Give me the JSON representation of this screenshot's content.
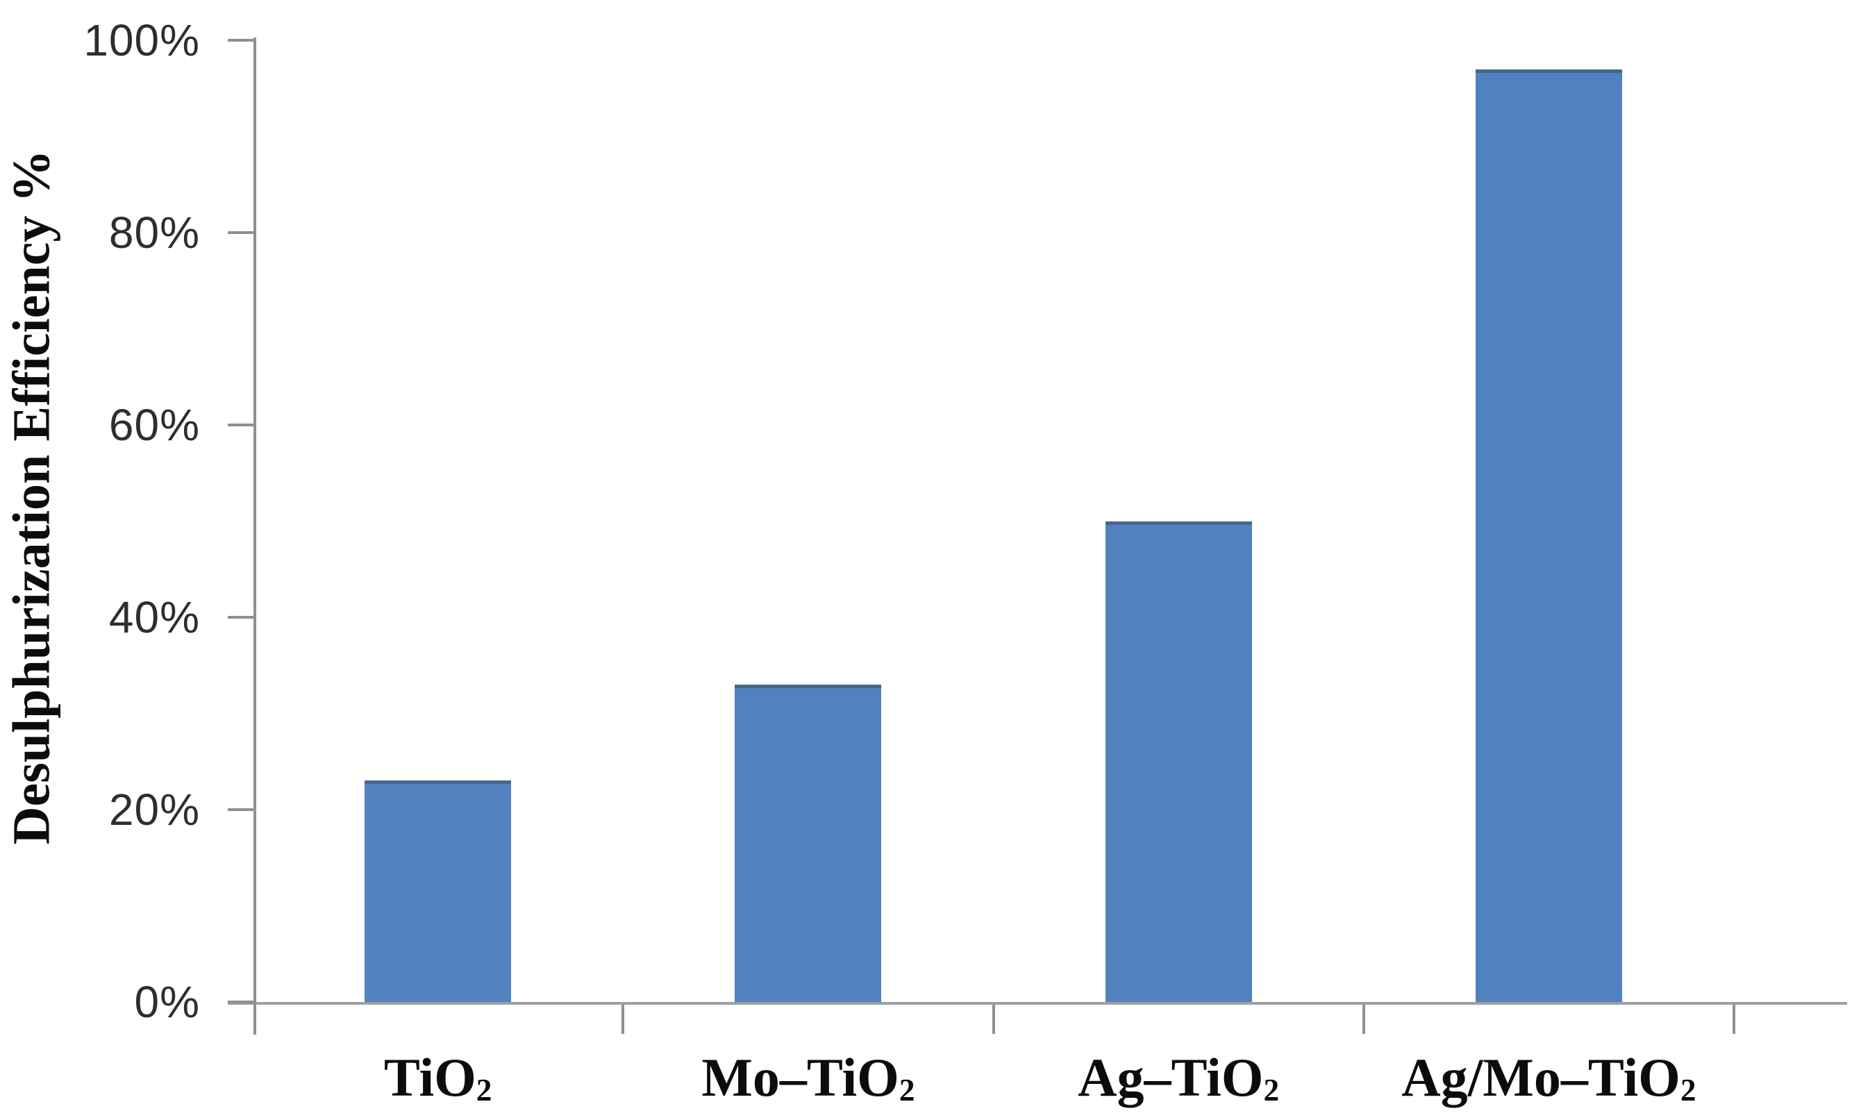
{
  "figure": {
    "background": "#ffffff"
  },
  "yaxis": {
    "title": "Desulphurization Efficiency %",
    "tick_labels": [
      "0%",
      "20%",
      "40%",
      "60%",
      "80%",
      "100%"
    ],
    "tick_values": [
      0,
      20,
      40,
      60,
      80,
      100
    ]
  },
  "xaxis": {
    "labels": [
      {
        "base": "TiO",
        "sub": "2"
      },
      {
        "base": "Mo–TiO",
        "sub": "2"
      },
      {
        "base": "Ag–TiO",
        "sub": "2"
      },
      {
        "base": "Ag/Mo–TiO",
        "sub": "2"
      }
    ]
  },
  "colors": {
    "bar_fill": "#5182bf",
    "bar_edge": "#46678f",
    "axis_line": "#8f8f8f",
    "tick_text": "#2e2e2e",
    "label_text": "#0c0c0c"
  },
  "chart_data": {
    "type": "bar",
    "categories": [
      "TiO2",
      "Mo-TiO2",
      "Ag-TiO2",
      "Ag/Mo-TiO2"
    ],
    "values": [
      23,
      33,
      50,
      97
    ],
    "title": "",
    "xlabel": "",
    "ylabel": "Desulphurization Efficiency %",
    "ylim": [
      0,
      100
    ],
    "ytick_step": 20,
    "ytick_format": "percent",
    "grid": false,
    "legend": false,
    "bar_color": "#5182bf",
    "bar_width_ratio": 0.4
  }
}
